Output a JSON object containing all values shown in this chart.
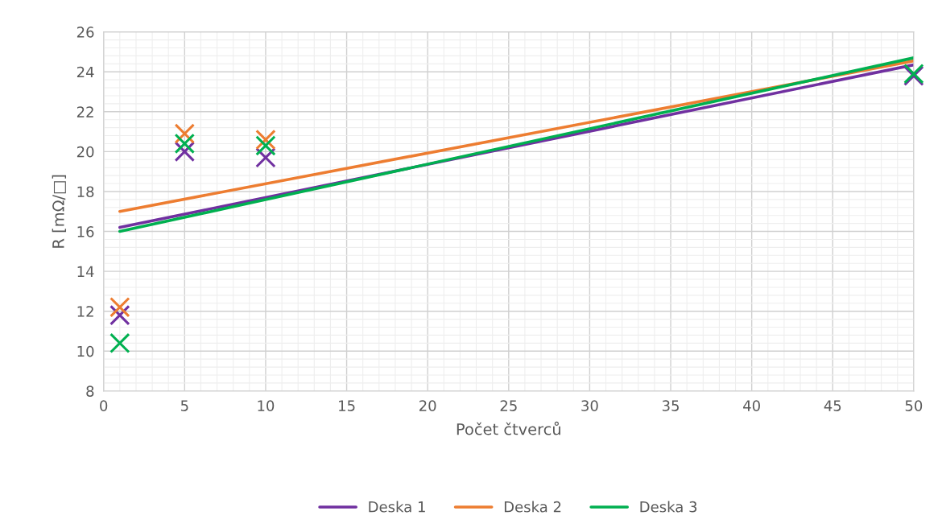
{
  "chart_data": {
    "type": "scatter",
    "xlabel": "Počet čtverců",
    "ylabel": "R [mΩ/□]",
    "xlim": [
      0,
      50
    ],
    "xticks": [
      0,
      5,
      10,
      15,
      20,
      25,
      30,
      35,
      40,
      45,
      50
    ],
    "ylim": [
      8,
      26
    ],
    "yticks": [
      8,
      10,
      12,
      14,
      16,
      18,
      20,
      22,
      24,
      26
    ],
    "grid": true,
    "legend": "bottom",
    "series": [
      {
        "marker": "cross",
        "color": "#7030a0",
        "x": [
          1,
          5,
          10,
          50
        ],
        "values": [
          11.8,
          20.0,
          19.7,
          23.8
        ]
      },
      {
        "marker": "cross",
        "color": "#ed7d31",
        "x": [
          1,
          5,
          10
        ],
        "values": [
          12.2,
          20.9,
          20.6
        ]
      },
      {
        "marker": "cross",
        "color": "#00b050",
        "x": [
          1,
          5,
          10,
          50
        ],
        "values": [
          10.4,
          20.4,
          20.3,
          23.9
        ]
      },
      {
        "type": "line",
        "marker": "none",
        "name": "Deska 1",
        "color": "#7030a0",
        "x": [
          1,
          50
        ],
        "values": [
          16.2,
          24.35
        ]
      },
      {
        "type": "line",
        "marker": "none",
        "name": "Deska 2",
        "color": "#ed7d31",
        "x": [
          1,
          50
        ],
        "values": [
          17.0,
          24.55
        ]
      },
      {
        "type": "line",
        "marker": "none",
        "name": "Deska 3",
        "color": "#00b050",
        "x": [
          1,
          50
        ],
        "values": [
          16.0,
          24.7
        ]
      }
    ]
  }
}
